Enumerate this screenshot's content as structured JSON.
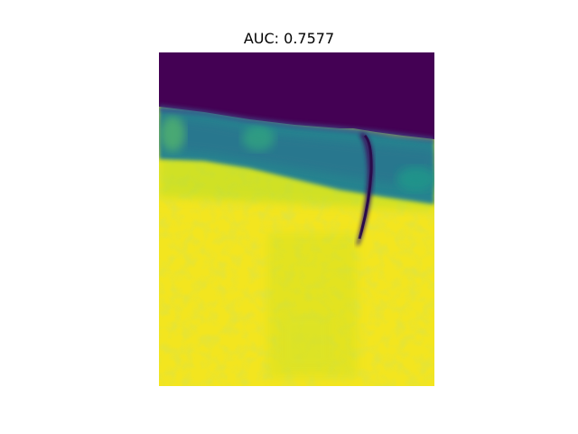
{
  "title": "AUC: 0.7577",
  "image": {
    "colormap": "viridis",
    "colors": {
      "low": "#440154",
      "mid": "#21918c",
      "high": "#fde725",
      "yellow_green": "#d5e21a",
      "teal_green": "#2fa88a"
    },
    "description": "heatmap"
  }
}
